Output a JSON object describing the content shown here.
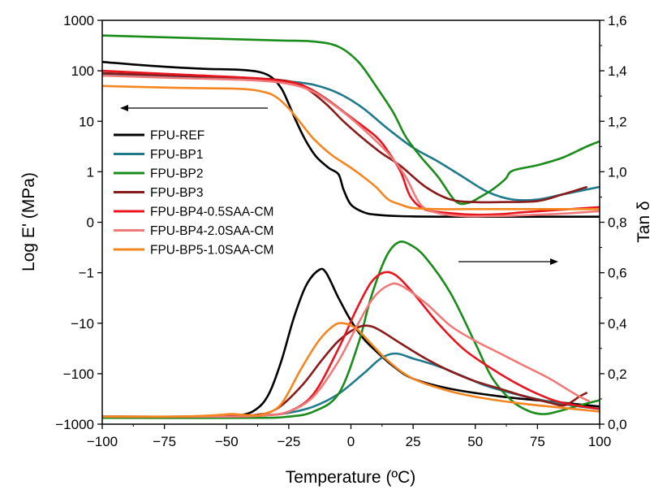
{
  "chart_data": {
    "type": "line",
    "xlabel": "Temperature (ºC)",
    "ylabel_left": "Log E' (MPa)",
    "ylabel_right": "Tan δ",
    "xlim": [
      -100,
      100
    ],
    "xticks": [
      "−100",
      "−75",
      "−50",
      "−25",
      "0",
      "25",
      "50",
      "75",
      "100"
    ],
    "yticks_left": [
      "1000",
      "100",
      "10",
      "1",
      "0",
      "−1",
      "−10",
      "−100",
      "−1000"
    ],
    "yticks_right": [
      "0,0",
      "0,2",
      "0,4",
      "0,6",
      "0,8",
      "1,0",
      "1,2",
      "1,4",
      "1,6"
    ],
    "ylim_right": [
      0.0,
      1.6
    ],
    "legend_position": "center-left",
    "grid": false,
    "series": [
      {
        "name": "FPU-REF",
        "color": "#000000",
        "storage_modulus": [
          [
            -100,
            150
          ],
          [
            -80,
            125
          ],
          [
            -60,
            110
          ],
          [
            -45,
            105
          ],
          [
            -37,
            95
          ],
          [
            -32,
            75
          ],
          [
            -28,
            45
          ],
          [
            -25,
            22
          ],
          [
            -22,
            10
          ],
          [
            -18,
            4
          ],
          [
            -14,
            2
          ],
          [
            -9,
            1.2
          ],
          [
            -5,
            0.95
          ],
          [
            -3,
            0.65
          ],
          [
            0,
            0.35
          ],
          [
            5,
            0.2
          ],
          [
            10,
            0.15
          ],
          [
            20,
            0.12
          ],
          [
            40,
            0.11
          ],
          [
            70,
            0.11
          ],
          [
            100,
            0.11
          ]
        ],
        "tan_delta": [
          [
            -100,
            0.03
          ],
          [
            -60,
            0.03
          ],
          [
            -45,
            0.035
          ],
          [
            -38,
            0.06
          ],
          [
            -33,
            0.12
          ],
          [
            -28,
            0.25
          ],
          [
            -23,
            0.42
          ],
          [
            -18,
            0.55
          ],
          [
            -13,
            0.61
          ],
          [
            -10,
            0.6
          ],
          [
            -5,
            0.5
          ],
          [
            0,
            0.41
          ],
          [
            5,
            0.34
          ],
          [
            10,
            0.29
          ],
          [
            17,
            0.23
          ],
          [
            25,
            0.18
          ],
          [
            40,
            0.14
          ],
          [
            60,
            0.11
          ],
          [
            80,
            0.09
          ],
          [
            100,
            0.07
          ]
        ]
      },
      {
        "name": "FPU-BP1",
        "color": "#1f7a8c",
        "storage_modulus": [
          [
            -100,
            85
          ],
          [
            -70,
            75
          ],
          [
            -40,
            67
          ],
          [
            -20,
            58
          ],
          [
            -10,
            45
          ],
          [
            -3,
            32
          ],
          [
            5,
            18
          ],
          [
            15,
            7
          ],
          [
            25,
            3
          ],
          [
            35,
            1.6
          ],
          [
            45,
            0.9
          ],
          [
            55,
            0.6
          ],
          [
            65,
            0.45
          ],
          [
            75,
            0.45
          ],
          [
            85,
            0.55
          ],
          [
            100,
            0.7
          ]
        ],
        "tan_delta": [
          [
            -100,
            0.03
          ],
          [
            -50,
            0.03
          ],
          [
            -35,
            0.035
          ],
          [
            -25,
            0.045
          ],
          [
            -15,
            0.07
          ],
          [
            -5,
            0.12
          ],
          [
            5,
            0.2
          ],
          [
            12,
            0.26
          ],
          [
            18,
            0.28
          ],
          [
            25,
            0.26
          ],
          [
            35,
            0.23
          ],
          [
            45,
            0.19
          ],
          [
            55,
            0.15
          ],
          [
            70,
            0.11
          ],
          [
            85,
            0.08
          ],
          [
            100,
            0.06
          ]
        ]
      },
      {
        "name": "FPU-BP2",
        "color": "#1a8c1a",
        "storage_modulus": [
          [
            -100,
            500
          ],
          [
            -60,
            440
          ],
          [
            -30,
            400
          ],
          [
            -15,
            380
          ],
          [
            -5,
            300
          ],
          [
            3,
            150
          ],
          [
            10,
            50
          ],
          [
            17,
            15
          ],
          [
            22,
            5
          ],
          [
            28,
            2
          ],
          [
            35,
            0.9
          ],
          [
            42,
            0.42
          ],
          [
            47,
            0.38
          ],
          [
            52,
            0.5
          ],
          [
            57,
            0.65
          ],
          [
            62,
            0.85
          ],
          [
            65,
            1.05
          ],
          [
            75,
            1.35
          ],
          [
            85,
            1.9
          ],
          [
            95,
            3.2
          ],
          [
            100,
            4
          ]
        ],
        "tan_delta": [
          [
            -100,
            0.025
          ],
          [
            -40,
            0.025
          ],
          [
            -25,
            0.03
          ],
          [
            -15,
            0.05
          ],
          [
            -5,
            0.12
          ],
          [
            3,
            0.32
          ],
          [
            8,
            0.5
          ],
          [
            14,
            0.66
          ],
          [
            19,
            0.72
          ],
          [
            24,
            0.71
          ],
          [
            30,
            0.66
          ],
          [
            40,
            0.52
          ],
          [
            50,
            0.32
          ],
          [
            57,
            0.18
          ],
          [
            65,
            0.09
          ],
          [
            72,
            0.05
          ],
          [
            78,
            0.04
          ],
          [
            85,
            0.055
          ],
          [
            92,
            0.075
          ],
          [
            100,
            0.095
          ]
        ]
      },
      {
        "name": "FPU-BP3",
        "color": "#8b1a1a",
        "storage_modulus": [
          [
            -100,
            90
          ],
          [
            -70,
            80
          ],
          [
            -40,
            72
          ],
          [
            -25,
            62
          ],
          [
            -18,
            45
          ],
          [
            -10,
            22
          ],
          [
            -3,
            10
          ],
          [
            5,
            4.5
          ],
          [
            12,
            2.4
          ],
          [
            20,
            1.3
          ],
          [
            30,
            0.7
          ],
          [
            40,
            0.45
          ],
          [
            50,
            0.4
          ],
          [
            60,
            0.4
          ],
          [
            75,
            0.42
          ],
          [
            85,
            0.55
          ],
          [
            95,
            0.7
          ]
        ],
        "tan_delta": [
          [
            -100,
            0.03
          ],
          [
            -60,
            0.03
          ],
          [
            -40,
            0.035
          ],
          [
            -30,
            0.06
          ],
          [
            -20,
            0.15
          ],
          [
            -12,
            0.25
          ],
          [
            -5,
            0.33
          ],
          [
            2,
            0.38
          ],
          [
            7,
            0.39
          ],
          [
            12,
            0.37
          ],
          [
            20,
            0.32
          ],
          [
            30,
            0.26
          ],
          [
            40,
            0.21
          ],
          [
            50,
            0.17
          ],
          [
            60,
            0.14
          ],
          [
            70,
            0.11
          ],
          [
            80,
            0.085
          ],
          [
            86,
            0.075
          ],
          [
            92,
            0.11
          ],
          [
            95,
            0.125
          ]
        ]
      },
      {
        "name": "FPU-BP4-0.5SAA-CM",
        "color": "#e8141e",
        "storage_modulus": [
          [
            -100,
            100
          ],
          [
            -70,
            85
          ],
          [
            -40,
            72
          ],
          [
            -25,
            60
          ],
          [
            -18,
            48
          ],
          [
            -10,
            28
          ],
          [
            0,
            12
          ],
          [
            10,
            5
          ],
          [
            15,
            2.5
          ],
          [
            20,
            1.0
          ],
          [
            24,
            0.5
          ],
          [
            30,
            0.25
          ],
          [
            40,
            0.18
          ],
          [
            50,
            0.15
          ],
          [
            60,
            0.16
          ],
          [
            70,
            0.2
          ],
          [
            85,
            0.25
          ],
          [
            100,
            0.3
          ]
        ],
        "tan_delta": [
          [
            -100,
            0.03
          ],
          [
            -50,
            0.03
          ],
          [
            -35,
            0.035
          ],
          [
            -25,
            0.05
          ],
          [
            -15,
            0.12
          ],
          [
            -5,
            0.3
          ],
          [
            2,
            0.45
          ],
          [
            8,
            0.56
          ],
          [
            13,
            0.6
          ],
          [
            18,
            0.59
          ],
          [
            25,
            0.52
          ],
          [
            35,
            0.4
          ],
          [
            45,
            0.3
          ],
          [
            55,
            0.23
          ],
          [
            65,
            0.17
          ],
          [
            75,
            0.12
          ],
          [
            85,
            0.085
          ],
          [
            100,
            0.06
          ]
        ]
      },
      {
        "name": "FPU-BP4-2.0SAA-CM",
        "color": "#f07a7a",
        "storage_modulus": [
          [
            -100,
            80
          ],
          [
            -70,
            72
          ],
          [
            -40,
            65
          ],
          [
            -25,
            55
          ],
          [
            -15,
            38
          ],
          [
            -5,
            18
          ],
          [
            5,
            7
          ],
          [
            15,
            2.3
          ],
          [
            22,
            0.9
          ],
          [
            28,
            0.35
          ],
          [
            35,
            0.18
          ],
          [
            45,
            0.12
          ],
          [
            55,
            0.12
          ],
          [
            65,
            0.13
          ],
          [
            75,
            0.15
          ],
          [
            85,
            0.17
          ],
          [
            100,
            0.22
          ]
        ],
        "tan_delta": [
          [
            -100,
            0.03
          ],
          [
            -50,
            0.03
          ],
          [
            -35,
            0.035
          ],
          [
            -25,
            0.05
          ],
          [
            -15,
            0.11
          ],
          [
            -5,
            0.25
          ],
          [
            3,
            0.4
          ],
          [
            9,
            0.5
          ],
          [
            15,
            0.55
          ],
          [
            20,
            0.55
          ],
          [
            30,
            0.48
          ],
          [
            40,
            0.39
          ],
          [
            50,
            0.33
          ],
          [
            60,
            0.28
          ],
          [
            70,
            0.23
          ],
          [
            80,
            0.18
          ],
          [
            90,
            0.12
          ],
          [
            96,
            0.09
          ]
        ]
      },
      {
        "name": "FPU-BP5-1.0SAA-CM",
        "color": "#f5861f",
        "storage_modulus": [
          [
            -100,
            50
          ],
          [
            -70,
            46
          ],
          [
            -45,
            44
          ],
          [
            -35,
            38
          ],
          [
            -30,
            30
          ],
          [
            -25,
            18
          ],
          [
            -20,
            9
          ],
          [
            -15,
            4.5
          ],
          [
            -8,
            2.2
          ],
          [
            0,
            1.2
          ],
          [
            5,
            0.9
          ],
          [
            10,
            0.7
          ],
          [
            15,
            0.45
          ],
          [
            20,
            0.35
          ],
          [
            25,
            0.28
          ],
          [
            35,
            0.26
          ],
          [
            50,
            0.26
          ],
          [
            75,
            0.26
          ],
          [
            100,
            0.26
          ]
        ],
        "tan_delta": [
          [
            -100,
            0.03
          ],
          [
            -70,
            0.03
          ],
          [
            -55,
            0.035
          ],
          [
            -48,
            0.04
          ],
          [
            -40,
            0.035
          ],
          [
            -35,
            0.04
          ],
          [
            -28,
            0.08
          ],
          [
            -20,
            0.22
          ],
          [
            -13,
            0.33
          ],
          [
            -7,
            0.39
          ],
          [
            -3,
            0.4
          ],
          [
            2,
            0.38
          ],
          [
            8,
            0.32
          ],
          [
            15,
            0.25
          ],
          [
            25,
            0.18
          ],
          [
            40,
            0.13
          ],
          [
            55,
            0.1
          ],
          [
            70,
            0.08
          ],
          [
            85,
            0.065
          ],
          [
            100,
            0.05
          ]
        ]
      }
    ]
  }
}
